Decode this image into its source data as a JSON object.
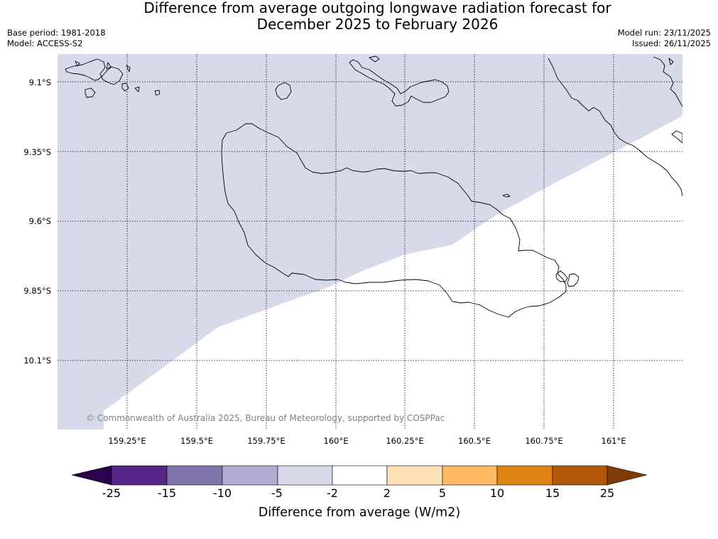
{
  "title": {
    "line1": "Difference from average outgoing longwave radiation forecast for",
    "line2": "December 2025 to February 2026"
  },
  "meta": {
    "base_period": "Base period: 1981-2018",
    "model": "Model: ACCESS-S2",
    "model_run": "Model run: 23/11/2025",
    "issued": "Issued: 26/11/2025"
  },
  "map": {
    "copyright": "© Commonwealth of Australia 2025, Bureau of Meteorology, supported by COSPPac",
    "lat_labels": [
      "9.1°S",
      "9.35°S",
      "9.6°S",
      "9.85°S",
      "10.1°S"
    ],
    "lon_labels": [
      "159.25°E",
      "159.5°E",
      "159.75°E",
      "160°E",
      "160.25°E",
      "160.5°E",
      "160.75°E",
      "161°E"
    ]
  },
  "colorbar": {
    "title": "Difference from average (W/m2)",
    "tick_labels": [
      "-25",
      "-15",
      "-10",
      "-5",
      "-2",
      "2",
      "5",
      "10",
      "15",
      "25"
    ],
    "colors": [
      "#2d004b",
      "#542788",
      "#8073ac",
      "#b2abd2",
      "#d8daeb",
      "#ffffff",
      "#fee0b6",
      "#fdb863",
      "#e08214",
      "#b35806",
      "#7f3b08"
    ],
    "shaded_color": "#d8daeb",
    "coast_color": "#000000"
  }
}
